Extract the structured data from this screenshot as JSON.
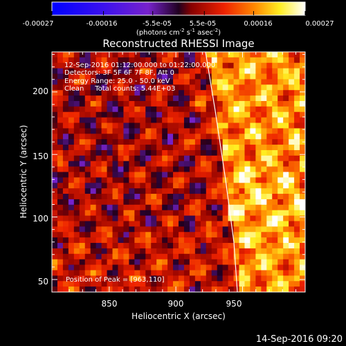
{
  "colorbar": {
    "ticks": [
      "-0.00027",
      "-0.00016",
      "-5.5e-05",
      "5.5e-05",
      "0.00016",
      "0.00027"
    ],
    "tick_values": [
      -0.00027,
      -0.00016,
      -5.5e-05,
      5.5e-05,
      0.00016,
      0.00027
    ],
    "range": [
      -0.00027,
      0.00027
    ],
    "units_main": "(photons cm",
    "units_exp1": "-2",
    "units_mid1": " s",
    "units_exp2": "-1",
    "units_mid2": " asec",
    "units_exp3": "-2",
    "units_end": ")"
  },
  "chart_data": {
    "type": "heatmap",
    "title": "Reconstructed RHESSI Image",
    "xlabel": "Heliocentric X (arcsec)",
    "ylabel": "Heliocentric Y (arcsec)",
    "xlim": [
      807,
      997
    ],
    "ylim": [
      40,
      232
    ],
    "xticks": [
      850,
      900,
      950
    ],
    "yticks": [
      50,
      100,
      150,
      200
    ],
    "colormap": "rhessi blue-purple-red-yellow-white",
    "limb_color": "#ffffff",
    "peak_position": [
      963,
      110
    ]
  },
  "annotations": {
    "line1": "12-Sep-2016 01:12:00.000 to 01:22:00.000",
    "line2": "Detectors: 3F 5F 6F 7F 8F, Att 0",
    "line3": "Energy Range: 25.0 - 50.0 keV",
    "line4": "Clean     Total counts: 5.44E+03",
    "peak": "Position of Peak = [963,110]"
  },
  "timestamp": "14-Sep-2016 09:20"
}
